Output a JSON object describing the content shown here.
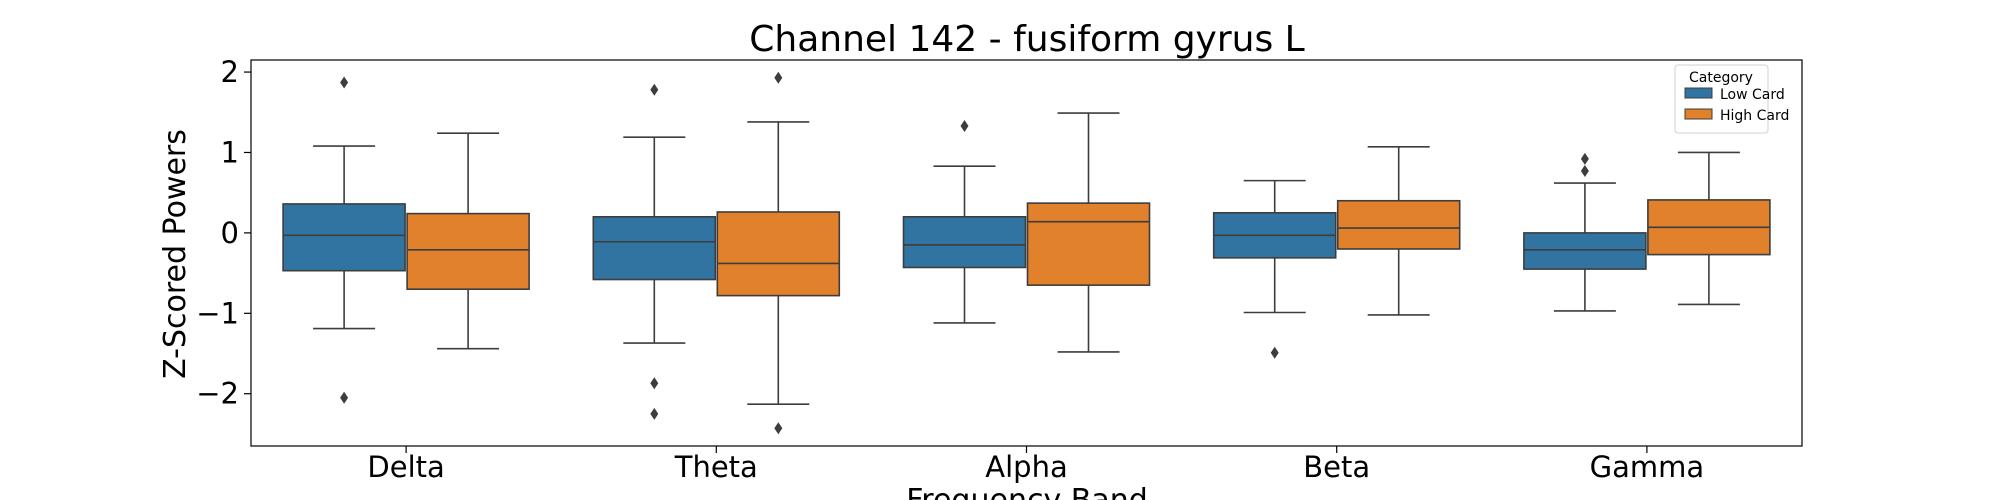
{
  "chart_data": {
    "type": "box",
    "title": "Channel 142 - fusiform gyrus L",
    "xlabel": "Frequency Band",
    "ylabel": "Z-Scored Powers",
    "ylim": [
      -2.65,
      2.15
    ],
    "yticks": [
      -2,
      -1,
      0,
      1,
      2
    ],
    "ytick_labels": [
      "−2",
      "−1",
      "0",
      "1",
      "2"
    ],
    "categories": [
      "Delta",
      "Theta",
      "Alpha",
      "Beta",
      "Gamma"
    ],
    "grid": false,
    "legend": {
      "title": "Category",
      "position": "top-right"
    },
    "series": [
      {
        "name": "Low Card",
        "color": "#3274a1",
        "boxes": [
          {
            "whislo": -1.19,
            "q1": -0.47,
            "med": -0.03,
            "q3": 0.36,
            "whishi": 1.08,
            "fliers": [
              1.87,
              -2.05
            ]
          },
          {
            "whislo": -1.37,
            "q1": -0.58,
            "med": -0.11,
            "q3": 0.2,
            "whishi": 1.19,
            "fliers": [
              1.78,
              -1.87,
              -2.25
            ]
          },
          {
            "whislo": -1.12,
            "q1": -0.43,
            "med": -0.15,
            "q3": 0.2,
            "whishi": 0.83,
            "fliers": [
              1.33
            ]
          },
          {
            "whislo": -0.99,
            "q1": -0.31,
            "med": -0.03,
            "q3": 0.25,
            "whishi": 0.65,
            "fliers": [
              -1.49
            ]
          },
          {
            "whislo": -0.97,
            "q1": -0.45,
            "med": -0.21,
            "q3": 0.0,
            "whishi": 0.62,
            "fliers": [
              0.92,
              0.77
            ]
          }
        ]
      },
      {
        "name": "High Card",
        "color": "#e1812c",
        "boxes": [
          {
            "whislo": -1.44,
            "q1": -0.7,
            "med": -0.21,
            "q3": 0.24,
            "whishi": 1.24,
            "fliers": []
          },
          {
            "whislo": -2.13,
            "q1": -0.78,
            "med": -0.38,
            "q3": 0.26,
            "whishi": 1.38,
            "fliers": [
              1.93,
              -2.43
            ]
          },
          {
            "whislo": -1.48,
            "q1": -0.65,
            "med": 0.14,
            "q3": 0.37,
            "whishi": 1.49,
            "fliers": []
          },
          {
            "whislo": -1.02,
            "q1": -0.2,
            "med": 0.06,
            "q3": 0.4,
            "whishi": 1.07,
            "fliers": []
          },
          {
            "whislo": -0.89,
            "q1": -0.27,
            "med": 0.07,
            "q3": 0.41,
            "whishi": 1.0,
            "fliers": []
          }
        ]
      }
    ]
  }
}
